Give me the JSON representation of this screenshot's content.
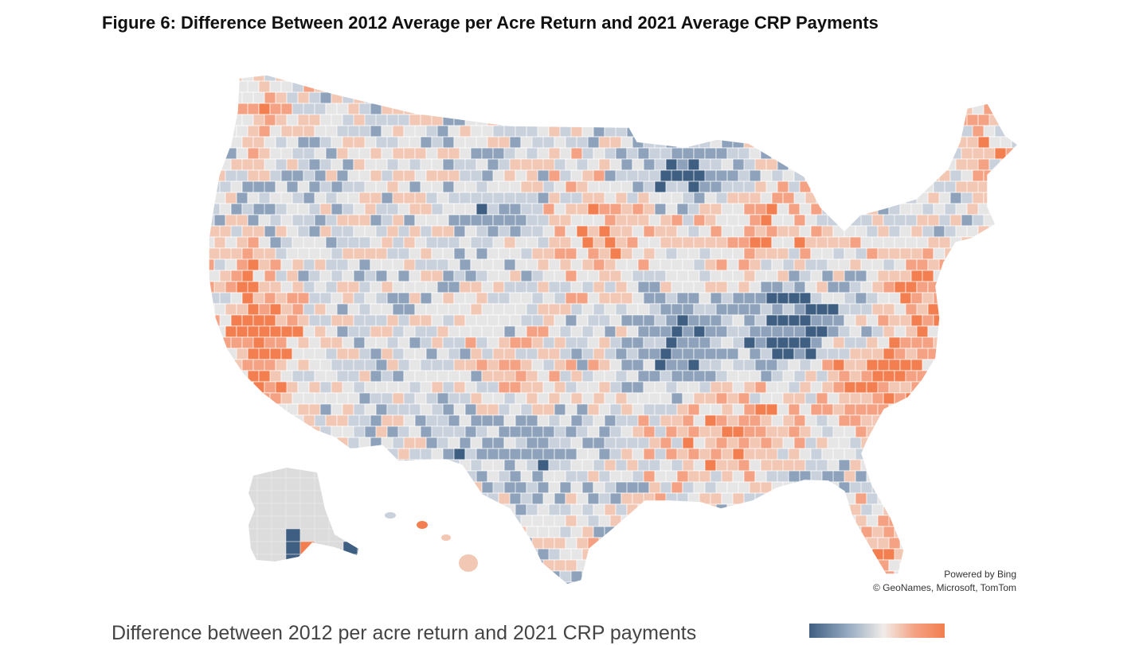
{
  "figure": {
    "title": "Figure 6: Difference Between 2012 Average per Acre Return and 2021 Average CRP Payments"
  },
  "map": {
    "region": "United States (contiguous US, Alaska, Hawaii)",
    "level": "county",
    "colors": {
      "strong_negative": "#3f5f82",
      "negative": "#8ea3bb",
      "slight_negative": "#c9d1dc",
      "neutral": "#e6e6e6",
      "slight_positive": "#f2c7b3",
      "positive": "#f4a283",
      "strong_positive": "#f37e4f",
      "border": "#ffffff"
    }
  },
  "attribution": {
    "line1": "Powered by Bing",
    "line2": "© GeoNames, Microsoft, TomTom"
  },
  "legend": {
    "label": "Difference between 2012 per acre return and 2021 CRP payments",
    "gradient_from": "#3f5f82",
    "gradient_to": "#f37e4f"
  }
}
